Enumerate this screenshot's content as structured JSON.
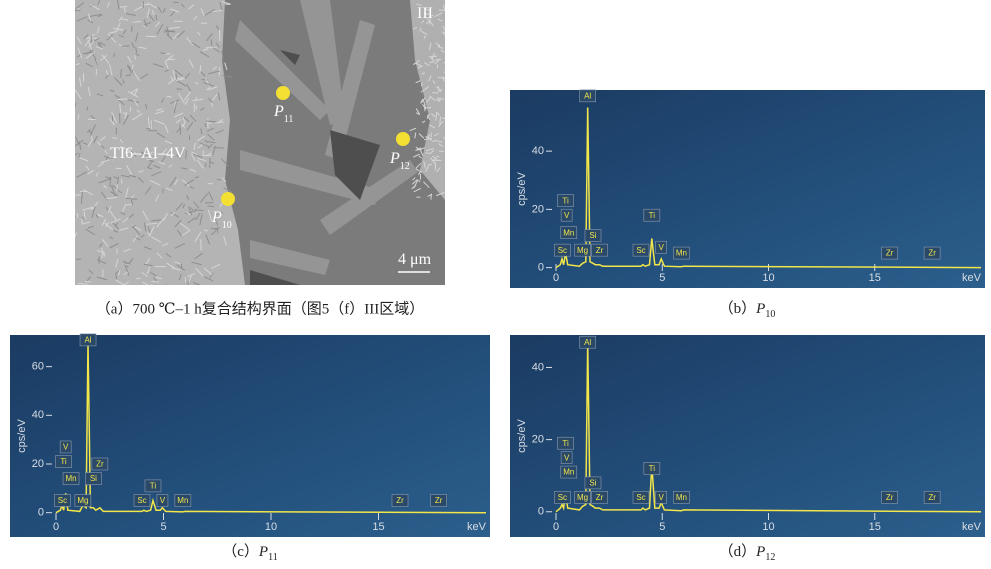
{
  "image_panel": {
    "region_label": "III",
    "alloy_label": "TI6–AI–4V",
    "points": [
      {
        "symbol": "P",
        "subscript": "11"
      },
      {
        "symbol": "P",
        "subscript": "12"
      },
      {
        "symbol": "P",
        "subscript": "10"
      }
    ],
    "scale_bar": "4 μm",
    "caption": "（a）700 ℃–1 h复合结构界面（图5（f）III区域）"
  },
  "chart_data": [
    {
      "type": "line",
      "caption": {
        "prefix": "（b）",
        "symbol": "P",
        "subscript": "10"
      },
      "x_label": "keV",
      "y_label": "cps/eV",
      "xlim": [
        0,
        20
      ],
      "ylim": [
        -7,
        61
      ],
      "xticks": [
        0,
        5,
        10,
        15
      ],
      "yticks": [
        0,
        20,
        40
      ],
      "color": "#f2e64a",
      "series": [
        {
          "x": [
            0,
            0.2,
            0.28,
            0.36,
            0.45,
            0.55,
            1.1,
            1.25,
            1.4,
            1.49,
            1.6,
            1.74,
            1.85,
            2.04,
            2.2,
            4.0,
            4.09,
            4.2,
            4.4,
            4.51,
            4.65,
            4.85,
            4.95,
            5.1,
            5.9,
            6.0,
            20
          ],
          "values": [
            0,
            1,
            3,
            1,
            5,
            1,
            0.5,
            1.5,
            2,
            55,
            2,
            1.5,
            1,
            1,
            0.5,
            0.5,
            1,
            0.5,
            1,
            10,
            1,
            1,
            3,
            0.5,
            0.3,
            0.5,
            0
          ]
        }
      ],
      "peak_labels": [
        {
          "text": "Al",
          "x": 1.49,
          "y": 59
        },
        {
          "text": "Ti",
          "x": 0.45,
          "y": 23
        },
        {
          "text": "V",
          "x": 0.5,
          "y": 18
        },
        {
          "text": "Mn",
          "x": 0.6,
          "y": 12
        },
        {
          "text": "Si",
          "x": 1.74,
          "y": 11
        },
        {
          "text": "Sc",
          "x": 0.3,
          "y": 6
        },
        {
          "text": "Mg",
          "x": 1.25,
          "y": 6
        },
        {
          "text": "Zr",
          "x": 2.05,
          "y": 6
        },
        {
          "text": "Sc",
          "x": 4.0,
          "y": 6
        },
        {
          "text": "Ti",
          "x": 4.51,
          "y": 18
        },
        {
          "text": "V",
          "x": 4.95,
          "y": 7
        },
        {
          "text": "Mn",
          "x": 5.9,
          "y": 5
        },
        {
          "text": "Zr",
          "x": 15.7,
          "y": 5
        },
        {
          "text": "Zr",
          "x": 17.7,
          "y": 5
        }
      ]
    },
    {
      "type": "line",
      "caption": {
        "prefix": "（c）",
        "symbol": "P",
        "subscript": "11"
      },
      "x_label": "keV",
      "y_label": "cps/eV",
      "xlim": [
        0,
        20
      ],
      "ylim": [
        -10,
        73
      ],
      "xticks": [
        0,
        5,
        10,
        15
      ],
      "yticks": [
        0,
        20,
        40,
        60
      ],
      "color": "#f2e64a",
      "series": [
        {
          "x": [
            0,
            0.2,
            0.28,
            0.36,
            0.45,
            0.55,
            1.1,
            1.25,
            1.4,
            1.49,
            1.6,
            1.74,
            1.85,
            2.04,
            2.2,
            4.0,
            4.09,
            4.2,
            4.4,
            4.51,
            4.65,
            4.85,
            4.95,
            5.1,
            5.9,
            6.0,
            20
          ],
          "values": [
            0,
            1,
            3,
            1,
            8,
            1,
            0.5,
            3,
            2,
            70,
            2,
            2,
            1,
            2,
            0.5,
            0.5,
            1,
            0.5,
            1,
            5,
            1,
            1,
            2,
            0.5,
            0.3,
            0.5,
            0
          ]
        }
      ],
      "peak_labels": [
        {
          "text": "Al",
          "x": 1.49,
          "y": 71
        },
        {
          "text": "V",
          "x": 0.45,
          "y": 27
        },
        {
          "text": "Ti",
          "x": 0.35,
          "y": 21
        },
        {
          "text": "Mn",
          "x": 0.7,
          "y": 14
        },
        {
          "text": "Zr",
          "x": 2.04,
          "y": 20
        },
        {
          "text": "Si",
          "x": 1.74,
          "y": 14
        },
        {
          "text": "Sc",
          "x": 0.3,
          "y": 5
        },
        {
          "text": "Mg",
          "x": 1.25,
          "y": 5
        },
        {
          "text": "Sc",
          "x": 4.0,
          "y": 5
        },
        {
          "text": "Ti",
          "x": 4.51,
          "y": 11
        },
        {
          "text": "V",
          "x": 4.95,
          "y": 5
        },
        {
          "text": "Mn",
          "x": 5.9,
          "y": 5
        },
        {
          "text": "Zr",
          "x": 16,
          "y": 5
        },
        {
          "text": "Zr",
          "x": 17.8,
          "y": 5
        }
      ]
    },
    {
      "type": "line",
      "caption": {
        "prefix": "（d）",
        "symbol": "P",
        "subscript": "12"
      },
      "x_label": "keV",
      "y_label": "cps/eV",
      "xlim": [
        0,
        20
      ],
      "ylim": [
        -7,
        49
      ],
      "xticks": [
        0,
        5,
        10,
        15
      ],
      "yticks": [
        0,
        20,
        40
      ],
      "color": "#f2e64a",
      "series": [
        {
          "x": [
            0,
            0.2,
            0.28,
            0.36,
            0.45,
            0.55,
            1.1,
            1.25,
            1.4,
            1.49,
            1.6,
            1.74,
            1.85,
            2.04,
            2.2,
            4.0,
            4.09,
            4.2,
            4.4,
            4.51,
            4.65,
            4.85,
            4.95,
            5.1,
            5.9,
            6.0,
            20
          ],
          "values": [
            0,
            1,
            2,
            1,
            5,
            1,
            0.5,
            1.5,
            2,
            47,
            2,
            1.5,
            1,
            1,
            0.5,
            0.5,
            1,
            0.5,
            1,
            13,
            1,
            1,
            2.5,
            0.5,
            0.3,
            0.5,
            0
          ]
        }
      ],
      "peak_labels": [
        {
          "text": "Al",
          "x": 1.49,
          "y": 47
        },
        {
          "text": "Ti",
          "x": 0.45,
          "y": 19
        },
        {
          "text": "V",
          "x": 0.5,
          "y": 15
        },
        {
          "text": "Mn",
          "x": 0.6,
          "y": 11
        },
        {
          "text": "Si",
          "x": 1.74,
          "y": 8
        },
        {
          "text": "Sc",
          "x": 0.3,
          "y": 4
        },
        {
          "text": "Mg",
          "x": 1.25,
          "y": 4
        },
        {
          "text": "Zr",
          "x": 2.05,
          "y": 4
        },
        {
          "text": "Sc",
          "x": 4.0,
          "y": 4
        },
        {
          "text": "Ti",
          "x": 4.51,
          "y": 12
        },
        {
          "text": "V",
          "x": 4.95,
          "y": 4
        },
        {
          "text": "Mn",
          "x": 5.9,
          "y": 4
        },
        {
          "text": "Zr",
          "x": 15.7,
          "y": 4
        },
        {
          "text": "Zr",
          "x": 17.7,
          "y": 4
        }
      ]
    }
  ]
}
